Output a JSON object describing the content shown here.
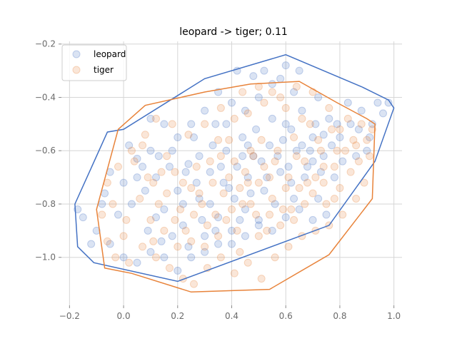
{
  "chart_data": {
    "type": "scatter",
    "title": "leopard -> tiger; 0.11",
    "xlabel": "",
    "ylabel": "",
    "xlim": [
      -0.23,
      1.03
    ],
    "ylim": [
      -1.18,
      -0.19
    ],
    "xticks": [
      -0.2,
      0.0,
      0.2,
      0.4,
      0.6,
      0.8,
      1.0
    ],
    "xtick_labels": [
      "−0.2",
      "0.0",
      "0.2",
      "0.4",
      "0.6",
      "0.8",
      "1.0"
    ],
    "yticks": [
      -1.0,
      -0.8,
      -0.6,
      -0.4,
      -0.2
    ],
    "ytick_labels": [
      "−1.0",
      "−0.8",
      "−0.6",
      "−0.4",
      "−0.2"
    ],
    "grid": true,
    "legend_position": "upper-left",
    "series": [
      {
        "name": "leopard",
        "color": "#4472c4",
        "marker_alpha": 0.2,
        "approx_center": [
          0.38,
          -0.7
        ],
        "hull": [
          [
            -0.18,
            -0.8
          ],
          [
            -0.17,
            -0.96
          ],
          [
            -0.11,
            -1.02
          ],
          [
            0.2,
            -1.09
          ],
          [
            0.76,
            -0.88
          ],
          [
            0.93,
            -0.64
          ],
          [
            1.0,
            -0.44
          ],
          [
            0.98,
            -0.41
          ],
          [
            0.88,
            -0.36
          ],
          [
            0.6,
            -0.24
          ],
          [
            0.3,
            -0.33
          ],
          [
            0.0,
            -0.52
          ],
          [
            -0.06,
            -0.53
          ]
        ],
        "points": [
          [
            0.02,
            -0.58
          ],
          [
            0.05,
            -0.63
          ],
          [
            0.1,
            -0.48
          ],
          [
            0.12,
            -0.7
          ],
          [
            0.15,
            -0.82
          ],
          [
            0.18,
            -0.6
          ],
          [
            0.2,
            -0.75
          ],
          [
            0.22,
            -0.88
          ],
          [
            0.24,
            -0.65
          ],
          [
            0.26,
            -0.55
          ],
          [
            0.28,
            -0.78
          ],
          [
            0.3,
            -0.92
          ],
          [
            0.32,
            -0.68
          ],
          [
            0.34,
            -0.5
          ],
          [
            0.35,
            -0.85
          ],
          [
            0.37,
            -0.72
          ],
          [
            0.38,
            -0.6
          ],
          [
            0.4,
            -0.95
          ],
          [
            0.41,
            -0.78
          ],
          [
            0.42,
            -0.66
          ],
          [
            0.44,
            -0.55
          ],
          [
            0.45,
            -0.82
          ],
          [
            0.46,
            -0.7
          ],
          [
            0.48,
            -0.62
          ],
          [
            0.5,
            -0.88
          ],
          [
            0.52,
            -0.75
          ],
          [
            0.54,
            -0.58
          ],
          [
            0.56,
            -0.8
          ],
          [
            0.58,
            -0.68
          ],
          [
            0.6,
            -0.5
          ],
          [
            0.62,
            -0.72
          ],
          [
            0.64,
            -0.6
          ],
          [
            0.66,
            -0.45
          ],
          [
            0.68,
            -0.66
          ],
          [
            0.7,
            -0.55
          ],
          [
            0.72,
            -0.78
          ],
          [
            0.74,
            -0.62
          ],
          [
            0.76,
            -0.48
          ],
          [
            0.8,
            -0.55
          ],
          [
            0.84,
            -0.5
          ],
          [
            0.88,
            -0.45
          ],
          [
            0.92,
            -0.5
          ],
          [
            0.96,
            -0.46
          ],
          [
            0.98,
            -0.42
          ],
          [
            0.9,
            -0.6
          ],
          [
            0.86,
            -0.62
          ],
          [
            0.78,
            -0.7
          ],
          [
            0.72,
            -0.4
          ],
          [
            0.65,
            -0.3
          ],
          [
            0.6,
            -0.28
          ],
          [
            0.55,
            -0.35
          ],
          [
            0.5,
            -0.4
          ],
          [
            0.45,
            -0.45
          ],
          [
            0.4,
            -0.42
          ],
          [
            0.35,
            -0.38
          ],
          [
            0.3,
            -0.45
          ],
          [
            0.25,
            -0.5
          ],
          [
            0.2,
            -0.55
          ],
          [
            0.15,
            -0.5
          ],
          [
            0.1,
            -0.6
          ],
          [
            0.05,
            -0.7
          ],
          [
            0.0,
            -0.72
          ],
          [
            -0.05,
            -0.68
          ],
          [
            -0.08,
            -0.8
          ],
          [
            -0.1,
            -0.9
          ],
          [
            -0.12,
            -0.95
          ],
          [
            -0.15,
            -0.85
          ],
          [
            -0.17,
            -0.82
          ],
          [
            -0.05,
            -0.95
          ],
          [
            0.0,
            -1.0
          ],
          [
            0.05,
            -1.02
          ],
          [
            0.1,
            -0.98
          ],
          [
            0.15,
            -1.0
          ],
          [
            0.2,
            -1.05
          ],
          [
            0.25,
            -1.0
          ],
          [
            0.3,
            -0.98
          ],
          [
            0.35,
            -0.95
          ],
          [
            0.4,
            -0.9
          ],
          [
            0.45,
            -0.92
          ],
          [
            0.5,
            -0.86
          ],
          [
            0.55,
            -0.9
          ],
          [
            0.6,
            -0.85
          ],
          [
            0.65,
            -0.82
          ],
          [
            0.7,
            -0.86
          ],
          [
            0.75,
            -0.84
          ],
          [
            0.08,
            -0.75
          ],
          [
            0.12,
            -0.85
          ],
          [
            0.18,
            -0.92
          ],
          [
            0.22,
            -0.8
          ],
          [
            0.28,
            -0.62
          ],
          [
            0.33,
            -0.58
          ],
          [
            0.36,
            -0.66
          ],
          [
            0.39,
            -0.74
          ],
          [
            0.43,
            -0.86
          ],
          [
            0.47,
            -0.76
          ],
          [
            0.51,
            -0.64
          ],
          [
            0.53,
            -0.7
          ],
          [
            0.57,
            -0.62
          ],
          [
            0.61,
            -0.66
          ],
          [
            0.63,
            -0.78
          ],
          [
            0.67,
            -0.7
          ],
          [
            0.69,
            -0.6
          ],
          [
            0.71,
            -0.5
          ],
          [
            0.73,
            -0.68
          ],
          [
            0.77,
            -0.58
          ],
          [
            0.81,
            -0.64
          ],
          [
            0.83,
            -0.42
          ],
          [
            0.87,
            -0.52
          ],
          [
            0.91,
            -0.55
          ],
          [
            0.94,
            -0.42
          ],
          [
            0.42,
            -0.3
          ],
          [
            0.48,
            -0.32
          ],
          [
            0.52,
            -0.3
          ],
          [
            0.58,
            -0.33
          ],
          [
            0.63,
            -0.38
          ],
          [
            0.38,
            -0.5
          ],
          [
            0.32,
            -0.8
          ],
          [
            0.27,
            -0.72
          ],
          [
            0.23,
            -0.68
          ],
          [
            0.17,
            -0.66
          ],
          [
            0.13,
            -0.62
          ],
          [
            0.07,
            -0.66
          ],
          [
            0.03,
            -0.8
          ],
          [
            -0.02,
            -0.84
          ],
          [
            -0.07,
            -0.76
          ],
          [
            0.09,
            -0.9
          ],
          [
            0.14,
            -0.94
          ],
          [
            0.24,
            -0.96
          ],
          [
            0.29,
            -0.86
          ],
          [
            0.34,
            -0.9
          ],
          [
            0.44,
            -0.62
          ],
          [
            0.46,
            -0.58
          ],
          [
            0.49,
            -0.52
          ],
          [
            0.55,
            -0.48
          ],
          [
            0.59,
            -0.56
          ],
          [
            0.62,
            -0.52
          ],
          [
            0.66,
            -0.58
          ],
          [
            0.7,
            -0.64
          ],
          [
            0.74,
            -0.54
          ],
          [
            0.79,
            -0.5
          ]
        ]
      },
      {
        "name": "tiger",
        "color": "#e8833a",
        "marker_alpha": 0.2,
        "approx_center": [
          0.42,
          -0.72
        ],
        "hull": [
          [
            -0.1,
            -0.82
          ],
          [
            -0.07,
            -1.04
          ],
          [
            0.03,
            -1.06
          ],
          [
            0.25,
            -1.13
          ],
          [
            0.54,
            -1.12
          ],
          [
            0.76,
            -0.99
          ],
          [
            0.92,
            -0.78
          ],
          [
            0.93,
            -0.5
          ],
          [
            0.9,
            -0.48
          ],
          [
            0.79,
            -0.42
          ],
          [
            0.65,
            -0.34
          ],
          [
            0.47,
            -0.35
          ],
          [
            0.3,
            -0.38
          ],
          [
            0.08,
            -0.43
          ],
          [
            -0.02,
            -0.52
          ]
        ],
        "points": [
          [
            0.04,
            -0.64
          ],
          [
            0.07,
            -0.58
          ],
          [
            0.11,
            -0.72
          ],
          [
            0.13,
            -0.8
          ],
          [
            0.16,
            -0.76
          ],
          [
            0.19,
            -0.68
          ],
          [
            0.21,
            -0.82
          ],
          [
            0.23,
            -0.9
          ],
          [
            0.25,
            -0.74
          ],
          [
            0.27,
            -0.66
          ],
          [
            0.29,
            -0.8
          ],
          [
            0.31,
            -0.88
          ],
          [
            0.33,
            -0.72
          ],
          [
            0.36,
            -0.62
          ],
          [
            0.38,
            -0.86
          ],
          [
            0.39,
            -0.7
          ],
          [
            0.41,
            -0.64
          ],
          [
            0.43,
            -0.98
          ],
          [
            0.44,
            -0.8
          ],
          [
            0.46,
            -0.72
          ],
          [
            0.47,
            -0.6
          ],
          [
            0.49,
            -0.84
          ],
          [
            0.5,
            -0.72
          ],
          [
            0.52,
            -0.66
          ],
          [
            0.53,
            -0.9
          ],
          [
            0.55,
            -0.78
          ],
          [
            0.57,
            -0.6
          ],
          [
            0.59,
            -0.82
          ],
          [
            0.61,
            -0.7
          ],
          [
            0.63,
            -0.55
          ],
          [
            0.65,
            -0.74
          ],
          [
            0.67,
            -0.64
          ],
          [
            0.69,
            -0.5
          ],
          [
            0.71,
            -0.7
          ],
          [
            0.73,
            -0.6
          ],
          [
            0.75,
            -0.8
          ],
          [
            0.78,
            -0.66
          ],
          [
            0.8,
            -0.52
          ],
          [
            0.82,
            -0.6
          ],
          [
            0.85,
            -0.56
          ],
          [
            0.88,
            -0.5
          ],
          [
            0.9,
            -0.56
          ],
          [
            0.92,
            -0.52
          ],
          [
            0.87,
            -0.64
          ],
          [
            0.84,
            -0.68
          ],
          [
            0.8,
            -0.74
          ],
          [
            0.76,
            -0.44
          ],
          [
            0.7,
            -0.38
          ],
          [
            0.64,
            -0.36
          ],
          [
            0.58,
            -0.4
          ],
          [
            0.52,
            -0.42
          ],
          [
            0.46,
            -0.46
          ],
          [
            0.41,
            -0.48
          ],
          [
            0.36,
            -0.44
          ],
          [
            0.3,
            -0.5
          ],
          [
            0.24,
            -0.54
          ],
          [
            0.18,
            -0.5
          ],
          [
            0.12,
            -0.48
          ],
          [
            0.08,
            -0.54
          ],
          [
            0.03,
            -0.6
          ],
          [
            -0.02,
            -0.66
          ],
          [
            -0.06,
            -0.72
          ],
          [
            -0.08,
            -0.84
          ],
          [
            -0.06,
            -0.94
          ],
          [
            -0.03,
            -1.0
          ],
          [
            0.02,
            -1.02
          ],
          [
            0.07,
            -0.96
          ],
          [
            0.12,
            -1.0
          ],
          [
            0.17,
            -1.04
          ],
          [
            0.22,
            -1.08
          ],
          [
            0.26,
            -1.1
          ],
          [
            0.31,
            -1.04
          ],
          [
            0.36,
            -1.0
          ],
          [
            0.41,
            -1.06
          ],
          [
            0.46,
            -1.02
          ],
          [
            0.51,
            -1.08
          ],
          [
            0.56,
            -1.0
          ],
          [
            0.61,
            -0.96
          ],
          [
            0.66,
            -0.92
          ],
          [
            0.71,
            -0.9
          ],
          [
            0.76,
            -0.88
          ],
          [
            0.81,
            -0.84
          ],
          [
            0.86,
            -0.78
          ],
          [
            0.89,
            -0.72
          ],
          [
            0.06,
            -0.78
          ],
          [
            0.1,
            -0.86
          ],
          [
            0.15,
            -0.9
          ],
          [
            0.2,
            -0.96
          ],
          [
            0.26,
            -0.84
          ],
          [
            0.32,
            -0.64
          ],
          [
            0.35,
            -0.56
          ],
          [
            0.37,
            -0.76
          ],
          [
            0.4,
            -0.82
          ],
          [
            0.42,
            -0.9
          ],
          [
            0.45,
            -0.68
          ],
          [
            0.48,
            -0.62
          ],
          [
            0.51,
            -0.56
          ],
          [
            0.54,
            -0.7
          ],
          [
            0.56,
            -0.64
          ],
          [
            0.6,
            -0.74
          ],
          [
            0.62,
            -0.82
          ],
          [
            0.64,
            -0.62
          ],
          [
            0.68,
            -0.72
          ],
          [
            0.72,
            -0.56
          ],
          [
            0.74,
            -0.66
          ],
          [
            0.77,
            -0.52
          ],
          [
            0.79,
            -0.6
          ],
          [
            0.83,
            -0.48
          ],
          [
            0.86,
            -0.58
          ],
          [
            0.91,
            -0.62
          ],
          [
            0.44,
            -0.38
          ],
          [
            0.5,
            -0.36
          ],
          [
            0.55,
            -0.38
          ],
          [
            0.6,
            -0.44
          ],
          [
            0.66,
            -0.48
          ],
          [
            0.39,
            -0.56
          ],
          [
            0.34,
            -0.84
          ],
          [
            0.28,
            -0.76
          ],
          [
            0.22,
            -0.72
          ],
          [
            0.16,
            -0.62
          ],
          [
            0.14,
            -0.68
          ],
          [
            0.09,
            -0.7
          ],
          [
            0.01,
            -0.86
          ],
          [
            -0.04,
            -0.8
          ],
          [
            0.0,
            -0.92
          ],
          [
            0.11,
            -0.94
          ],
          [
            0.19,
            -0.86
          ],
          [
            0.25,
            -0.94
          ],
          [
            0.3,
            -0.96
          ],
          [
            0.35,
            -0.92
          ],
          [
            0.43,
            -0.74
          ],
          [
            0.47,
            -0.8
          ],
          [
            0.5,
            -0.92
          ],
          [
            0.54,
            -0.84
          ],
          [
            0.58,
            -0.88
          ],
          [
            0.63,
            -0.86
          ],
          [
            0.67,
            -0.8
          ],
          [
            0.7,
            -0.76
          ],
          [
            0.74,
            -0.72
          ],
          [
            0.78,
            -0.78
          ]
        ]
      }
    ]
  }
}
